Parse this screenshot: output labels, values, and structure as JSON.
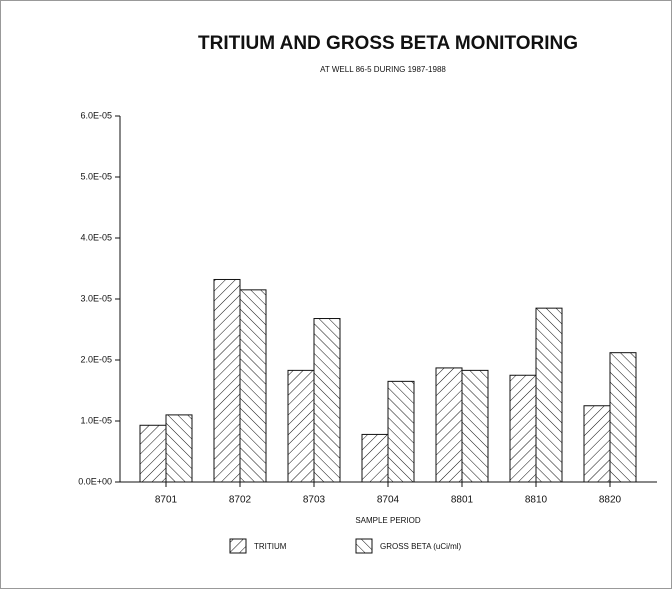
{
  "chart_data": {
    "type": "bar",
    "title": "TRITIUM AND GROSS BETA MONITORING",
    "subtitle": "AT WELL 86-5 DURING 1987-1988",
    "x_label": "SAMPLE PERIOD",
    "categories": [
      "8701",
      "8702",
      "8703",
      "8704",
      "8801",
      "8810",
      "8820"
    ],
    "series": [
      {
        "name": "TRITIUM",
        "color": "#111111",
        "hatch": "/",
        "values": [
          9.3e-06,
          3.32e-05,
          1.83e-05,
          7.8e-06,
          1.87e-05,
          1.75e-05,
          1.25e-05
        ]
      },
      {
        "name": "GROSS BETA (uCi/ml)",
        "color": "#111111",
        "hatch": "\\",
        "values": [
          1.1e-05,
          3.15e-05,
          2.68e-05,
          1.65e-05,
          1.83e-05,
          2.85e-05,
          2.12e-05
        ]
      }
    ],
    "ylim": [
      0,
      6e-05
    ],
    "yticks": [
      {
        "value": 0,
        "label": "0.0E+00"
      },
      {
        "value": 1e-05,
        "label": "1.0E-05"
      },
      {
        "value": 2e-05,
        "label": "2.0E-05"
      },
      {
        "value": 3e-05,
        "label": "3.0E-05"
      },
      {
        "value": 4e-05,
        "label": "4.0E-05"
      },
      {
        "value": 5e-05,
        "label": "5.0E-05"
      },
      {
        "value": 6e-05,
        "label": "6.0E-05"
      }
    ],
    "grid": false,
    "legend": "bottom"
  }
}
